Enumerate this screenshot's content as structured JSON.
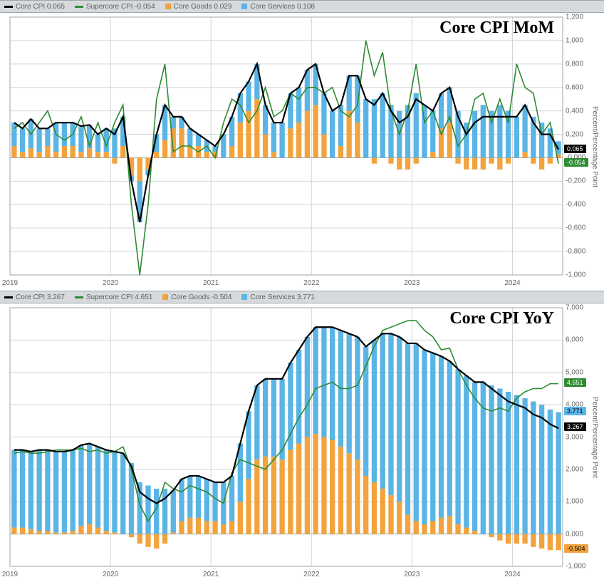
{
  "global": {
    "bg_color": "#ffffff",
    "legend_bg": "#d6dadd",
    "grid_color": "#d0d4d8",
    "axis_color": "#9ea6ad",
    "y_axis_label": "Percent/Percentage Point"
  },
  "mom_chart": {
    "title": "Core CPI MoM",
    "title_fontsize": 24,
    "legend": [
      {
        "label": "Core CPI",
        "value": "0.065",
        "color": "#000000",
        "swatch": "line"
      },
      {
        "label": "Supercore CPI",
        "value": "-0.054",
        "color": "#2e8b33",
        "swatch": "line"
      },
      {
        "label": "Core Goods",
        "value": "0.029",
        "color": "#f2a33c",
        "swatch": "bar"
      },
      {
        "label": "Core Services",
        "value": "0.108",
        "color": "#5ab4e5",
        "swatch": "bar"
      }
    ],
    "end_tags": [
      {
        "value": "0.065",
        "color": "#000000"
      },
      {
        "value": "-0.054",
        "color": "#2e8b33"
      }
    ],
    "x_years": [
      "2019",
      "2020",
      "2021",
      "2022",
      "2023",
      "2024"
    ],
    "ylim": [
      -1.0,
      1.2
    ],
    "ytick_step": 0.2,
    "type": "bar+line",
    "bar_width": 0.62,
    "colors": {
      "core_cpi": "#000000",
      "supercore": "#2e8b33",
      "goods": "#f2a33c",
      "services": "#5ab4e5"
    },
    "n": 66,
    "goods": [
      0.1,
      0.05,
      0.08,
      0.05,
      0.1,
      0.05,
      0.1,
      0.1,
      0.05,
      0.08,
      0.05,
      0.05,
      -0.05,
      0.1,
      -0.15,
      -0.2,
      -0.1,
      0.05,
      0.15,
      0.25,
      0.25,
      0.1,
      0.1,
      0.05,
      0.05,
      0.0,
      0.1,
      0.3,
      0.4,
      0.5,
      0.2,
      0.05,
      0.0,
      0.25,
      0.3,
      0.4,
      0.45,
      0.2,
      0.0,
      0.1,
      0.4,
      0.3,
      0.0,
      -0.05,
      0.0,
      -0.05,
      -0.1,
      -0.1,
      -0.05,
      0.0,
      0.05,
      0.25,
      0.3,
      -0.05,
      -0.1,
      -0.1,
      -0.1,
      -0.05,
      -0.1,
      -0.05,
      0.0,
      0.05,
      -0.05,
      -0.1,
      -0.05,
      0.03
    ],
    "services": [
      0.2,
      0.2,
      0.25,
      0.2,
      0.15,
      0.25,
      0.2,
      0.2,
      0.22,
      0.2,
      0.15,
      0.2,
      0.25,
      0.25,
      -0.05,
      -0.35,
      -0.05,
      0.15,
      0.3,
      0.1,
      0.1,
      0.15,
      0.1,
      0.1,
      0.05,
      0.2,
      0.25,
      0.25,
      0.25,
      0.3,
      0.25,
      0.25,
      0.3,
      0.3,
      0.3,
      0.35,
      0.35,
      0.35,
      0.4,
      0.35,
      0.3,
      0.4,
      0.5,
      0.5,
      0.55,
      0.45,
      0.4,
      0.45,
      0.55,
      0.45,
      0.35,
      0.3,
      0.3,
      0.4,
      0.3,
      0.4,
      0.45,
      0.4,
      0.45,
      0.4,
      0.35,
      0.4,
      0.35,
      0.3,
      0.25,
      0.11
    ],
    "core_cpi_line": [
      0.3,
      0.25,
      0.33,
      0.25,
      0.25,
      0.3,
      0.3,
      0.3,
      0.27,
      0.28,
      0.2,
      0.25,
      0.2,
      0.35,
      -0.2,
      -0.55,
      -0.15,
      0.2,
      0.45,
      0.35,
      0.35,
      0.25,
      0.2,
      0.15,
      0.1,
      0.2,
      0.35,
      0.55,
      0.65,
      0.8,
      0.45,
      0.3,
      0.3,
      0.55,
      0.6,
      0.75,
      0.8,
      0.55,
      0.4,
      0.45,
      0.7,
      0.7,
      0.5,
      0.45,
      0.55,
      0.4,
      0.3,
      0.35,
      0.5,
      0.45,
      0.4,
      0.55,
      0.6,
      0.35,
      0.2,
      0.3,
      0.35,
      0.35,
      0.35,
      0.35,
      0.35,
      0.45,
      0.3,
      0.2,
      0.2,
      0.07
    ],
    "supercore_line": [
      0.25,
      0.3,
      0.2,
      0.3,
      0.4,
      0.2,
      0.15,
      0.2,
      0.35,
      0.1,
      0.3,
      0.1,
      0.3,
      0.45,
      -0.4,
      -1.0,
      -0.4,
      0.5,
      0.8,
      0.05,
      0.1,
      0.1,
      0.05,
      0.1,
      0.0,
      0.3,
      0.5,
      0.45,
      0.3,
      0.4,
      0.6,
      0.35,
      0.4,
      0.55,
      0.5,
      0.6,
      0.6,
      0.55,
      0.6,
      0.4,
      0.35,
      0.45,
      1.0,
      0.7,
      0.9,
      0.4,
      0.2,
      0.4,
      0.8,
      0.3,
      0.4,
      0.2,
      0.35,
      0.1,
      0.2,
      0.5,
      0.55,
      0.3,
      0.5,
      0.3,
      0.8,
      0.6,
      0.55,
      0.2,
      0.3,
      -0.05
    ]
  },
  "yoy_chart": {
    "title": "Core CPI YoY",
    "title_fontsize": 24,
    "legend": [
      {
        "label": "Core CPI",
        "value": "3.267",
        "color": "#000000",
        "swatch": "line"
      },
      {
        "label": "Supercore CPI",
        "value": "4.651",
        "color": "#2e8b33",
        "swatch": "line"
      },
      {
        "label": "Core Goods",
        "value": "-0.504",
        "color": "#f2a33c",
        "swatch": "bar"
      },
      {
        "label": "Core Services",
        "value": "3.771",
        "color": "#5ab4e5",
        "swatch": "bar"
      }
    ],
    "end_tags": [
      {
        "value": "4.651",
        "color": "#2e8b33"
      },
      {
        "value": "3.771",
        "color": "#5ab4e5"
      },
      {
        "value": "3.267",
        "color": "#000000"
      },
      {
        "value": "-0.504",
        "color": "#f2a33c"
      }
    ],
    "x_years": [
      "2019",
      "2020",
      "2021",
      "2022",
      "2023",
      "2024"
    ],
    "ylim": [
      -1.0,
      7.0
    ],
    "ytick_step": 1.0,
    "type": "bar+line",
    "bar_width": 0.62,
    "colors": {
      "core_cpi": "#000000",
      "supercore": "#2e8b33",
      "goods": "#f2a33c",
      "services": "#5ab4e5"
    },
    "n": 66,
    "goods": [
      0.2,
      0.2,
      0.15,
      0.1,
      0.1,
      0.05,
      0.05,
      0.1,
      0.25,
      0.3,
      0.2,
      0.1,
      0.05,
      0.0,
      -0.1,
      -0.3,
      -0.4,
      -0.45,
      -0.3,
      0.05,
      0.4,
      0.5,
      0.5,
      0.4,
      0.4,
      0.3,
      0.4,
      1.0,
      1.7,
      2.3,
      2.4,
      2.4,
      2.3,
      2.6,
      2.8,
      3.0,
      3.1,
      3.0,
      2.9,
      2.7,
      2.5,
      2.3,
      1.8,
      1.6,
      1.4,
      1.2,
      1.0,
      0.6,
      0.4,
      0.3,
      0.4,
      0.5,
      0.55,
      0.3,
      0.2,
      0.1,
      0.0,
      -0.1,
      -0.2,
      -0.3,
      -0.3,
      -0.3,
      -0.4,
      -0.45,
      -0.5,
      -0.5
    ],
    "services": [
      2.4,
      2.4,
      2.4,
      2.5,
      2.5,
      2.5,
      2.5,
      2.5,
      2.5,
      2.5,
      2.5,
      2.5,
      2.5,
      2.5,
      2.2,
      1.6,
      1.5,
      1.4,
      1.4,
      1.3,
      1.3,
      1.3,
      1.3,
      1.3,
      1.2,
      1.3,
      1.4,
      1.8,
      2.1,
      2.3,
      2.4,
      2.4,
      2.5,
      2.7,
      2.9,
      3.1,
      3.3,
      3.4,
      3.5,
      3.6,
      3.7,
      3.8,
      4.0,
      4.4,
      4.8,
      5.0,
      5.1,
      5.3,
      5.5,
      5.4,
      5.2,
      5.0,
      4.8,
      4.8,
      4.7,
      4.6,
      4.7,
      4.6,
      4.5,
      4.4,
      4.3,
      4.2,
      4.1,
      4.0,
      3.85,
      3.77
    ],
    "core_cpi_line": [
      2.6,
      2.6,
      2.55,
      2.6,
      2.6,
      2.55,
      2.55,
      2.6,
      2.75,
      2.8,
      2.7,
      2.6,
      2.55,
      2.5,
      2.1,
      1.3,
      1.1,
      0.95,
      1.1,
      1.35,
      1.7,
      1.8,
      1.8,
      1.7,
      1.6,
      1.6,
      1.8,
      2.8,
      3.8,
      4.6,
      4.8,
      4.8,
      4.8,
      5.3,
      5.7,
      6.1,
      6.4,
      6.4,
      6.4,
      6.3,
      6.2,
      6.1,
      5.8,
      6.0,
      6.2,
      6.2,
      6.1,
      5.9,
      5.9,
      5.7,
      5.6,
      5.5,
      5.35,
      5.1,
      4.9,
      4.7,
      4.7,
      4.5,
      4.3,
      4.1,
      4.0,
      3.9,
      3.7,
      3.6,
      3.4,
      3.27
    ],
    "supercore_line": [
      2.5,
      2.55,
      2.5,
      2.5,
      2.55,
      2.6,
      2.6,
      2.6,
      2.65,
      2.55,
      2.6,
      2.5,
      2.55,
      2.7,
      2.0,
      0.9,
      0.4,
      0.8,
      1.6,
      1.4,
      1.3,
      1.5,
      1.4,
      1.3,
      1.1,
      0.95,
      1.9,
      2.3,
      2.2,
      2.1,
      2.0,
      2.3,
      2.6,
      3.1,
      3.6,
      4.0,
      4.5,
      4.6,
      4.7,
      4.5,
      4.5,
      4.6,
      5.2,
      5.8,
      6.3,
      6.4,
      6.5,
      6.6,
      6.6,
      6.3,
      6.1,
      5.7,
      5.75,
      5.1,
      4.6,
      4.2,
      3.9,
      3.8,
      3.9,
      3.8,
      4.2,
      4.4,
      4.5,
      4.5,
      4.65,
      4.65
    ]
  }
}
